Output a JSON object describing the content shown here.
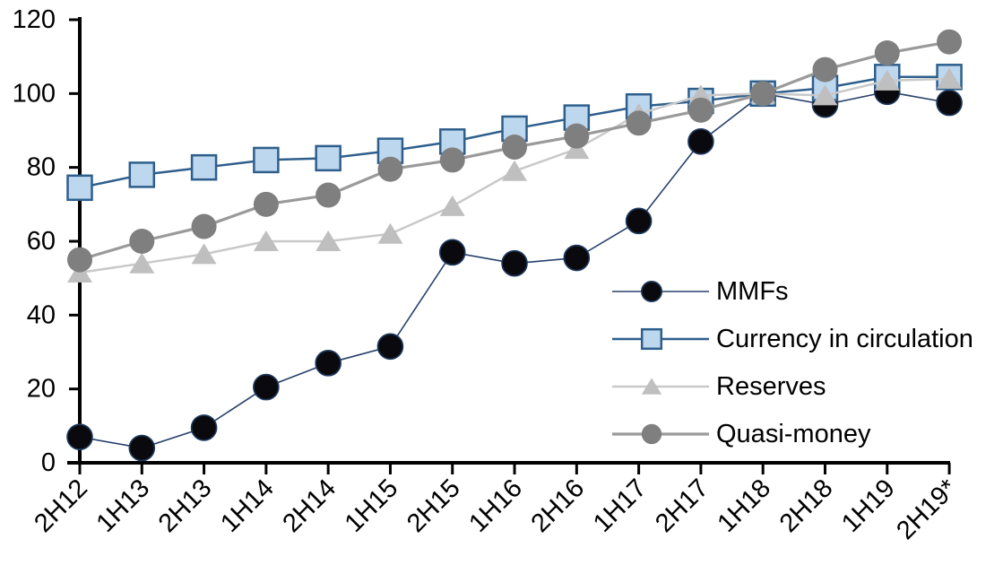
{
  "chart_data": {
    "type": "line",
    "title": "",
    "xlabel": "",
    "ylabel": "",
    "ylim": [
      0,
      120
    ],
    "grid": false,
    "legend_position": "center-right-inside",
    "y_axis": {
      "ticks": [
        0,
        20,
        40,
        60,
        80,
        100,
        120
      ]
    },
    "categories": [
      "2H12",
      "1H13",
      "2H13",
      "1H14",
      "2H14",
      "1H15",
      "2H15",
      "1H16",
      "2H16",
      "1H17",
      "2H17",
      "1H18",
      "2H18",
      "1H19",
      "2H19*"
    ],
    "series": [
      {
        "name": "MMFs",
        "marker": "circle",
        "marker_fill": "#0a0a0e",
        "marker_stroke": "#1f3a5f",
        "line_color": "#27406b",
        "line_width": 1.6,
        "values": [
          7,
          4,
          9.5,
          20.5,
          27,
          31.5,
          57,
          54,
          55.5,
          65.5,
          87,
          100,
          97,
          100.5,
          97.5
        ]
      },
      {
        "name": "Currency in circulation",
        "marker": "square",
        "marker_fill": "#bdd7ee",
        "marker_stroke": "#2e5f8c",
        "line_color": "#2e5f8c",
        "line_width": 2.5,
        "values": [
          74.5,
          78,
          80,
          82,
          82.5,
          84.5,
          87,
          90.5,
          93.5,
          96.5,
          98,
          100,
          101.5,
          104.5,
          104.5
        ]
      },
      {
        "name": "Reserves",
        "marker": "triangle",
        "marker_fill": "#bfbfbf",
        "marker_stroke": "none",
        "line_color": "#c9c9c9",
        "line_width": 2.5,
        "values": [
          51.5,
          54,
          56.5,
          60,
          60,
          62,
          69.5,
          79,
          85,
          94.5,
          99.5,
          100,
          99.5,
          103.5,
          104
        ]
      },
      {
        "name": "Quasi-money",
        "marker": "circle",
        "marker_fill": "#7f7f7f",
        "marker_stroke": "none",
        "line_color": "#9a9a9a",
        "line_width": 3.2,
        "values": [
          55,
          60,
          64,
          70,
          72.5,
          79.5,
          82,
          85.5,
          88.5,
          92,
          95.5,
          100,
          106.5,
          111,
          114
        ]
      }
    ],
    "colors": {
      "axis": "#000000",
      "background": "#ffffff",
      "navy": "#1f3a5f",
      "steel_blue": "#2e5f8c",
      "light_blue": "#bdd7ee",
      "light_gray": "#c9c9c9",
      "mid_gray": "#9a9a9a",
      "dark_gray": "#7f7f7f"
    }
  }
}
